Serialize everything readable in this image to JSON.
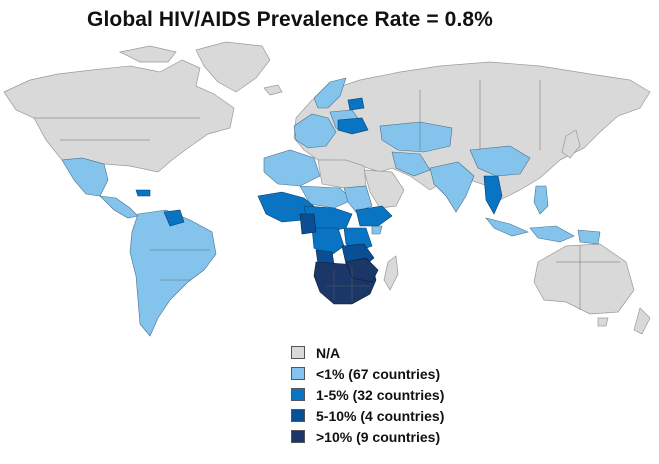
{
  "title": "Global HIV/AIDS Prevalence Rate = 0.8%",
  "legend": [
    {
      "label": "N/A",
      "color": "#d9d9d9"
    },
    {
      "label": "<1% (67 countries)",
      "color": "#84c4ec"
    },
    {
      "label": "1-5% (32 countries)",
      "color": "#0a74c4"
    },
    {
      "label": "5-10% (4 countries)",
      "color": "#0a4f93"
    },
    {
      "label": ">10% (9 countries)",
      "color": "#1b3768"
    }
  ],
  "colors": {
    "no_data": "#d9d9d9",
    "under_1": "#84c4ec",
    "range_1_5": "#0a74c4",
    "range_5_10": "#0a4f93",
    "over_10": "#1b3768"
  }
}
